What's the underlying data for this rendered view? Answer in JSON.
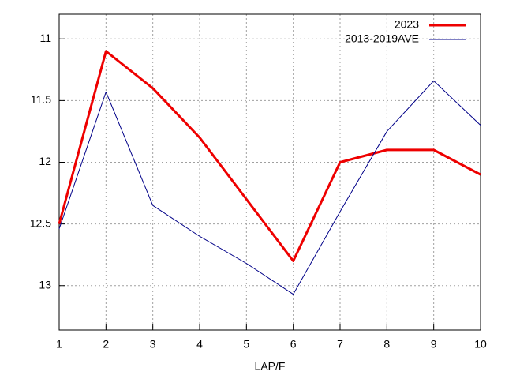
{
  "chart_data": {
    "type": "line",
    "x_label": "LAP/F",
    "x": [
      1,
      2,
      3,
      4,
      5,
      6,
      7,
      8,
      9,
      10
    ],
    "series": [
      {
        "name": "2023",
        "color": "#ee0000",
        "values": [
          12.5,
          11.1,
          11.4,
          11.8,
          12.3,
          12.8,
          12.0,
          11.9,
          11.9,
          12.1
        ]
      },
      {
        "name": "2013-2019AVE",
        "color": "#000088",
        "values": [
          12.54,
          11.43,
          12.35,
          12.6,
          12.82,
          13.07,
          12.4,
          11.75,
          11.34,
          11.7
        ]
      }
    ],
    "xlim": [
      1,
      10
    ],
    "xticks": [
      1,
      2,
      3,
      4,
      5,
      6,
      7,
      8,
      9,
      10
    ],
    "ylim": [
      10.8,
      13.36
    ],
    "yticks": [
      11,
      11.5,
      12,
      12.5,
      13
    ],
    "y_inverted": true,
    "grid": true,
    "legend": "top-right"
  }
}
